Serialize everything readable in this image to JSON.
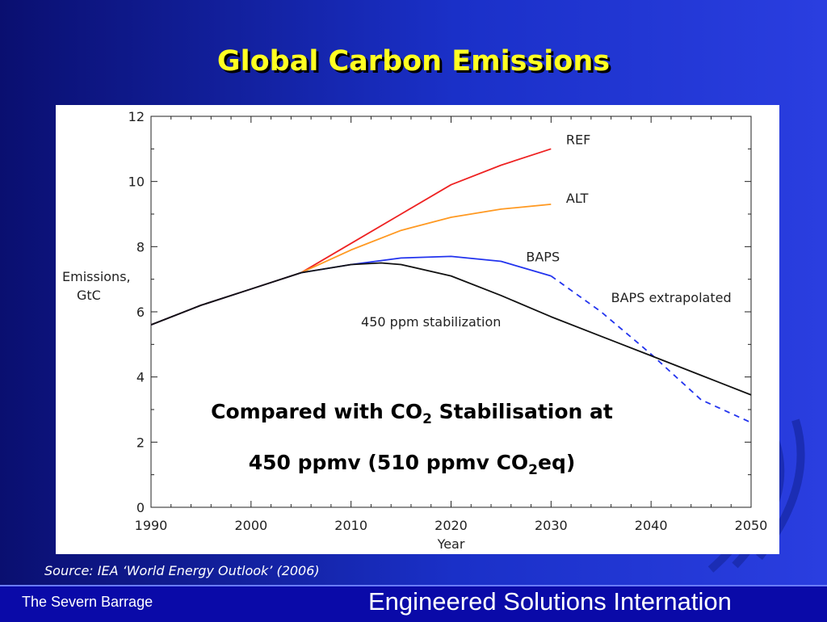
{
  "slide": {
    "title": "Global Carbon Emissions",
    "source": "Source: IEA ‘World Energy Outlook’ (2006)",
    "footer_left": "The Severn Barrage",
    "footer_right": "Engineered Solutions Internation",
    "note_line1_a": "Compared with CO",
    "note_line1_sub": "2",
    "note_line1_b": " Stabilisation at",
    "note_line2_a": "450 ppmv (510 ppmv CO",
    "note_line2_sub": "2",
    "note_line2_b": "eq)"
  },
  "chart_data": {
    "type": "line",
    "title": "",
    "xlabel": "Year",
    "ylabel": "Emissions, GtC",
    "xlim": [
      1990,
      2050
    ],
    "ylim": [
      0,
      12
    ],
    "xticks": [
      1990,
      2000,
      2010,
      2020,
      2030,
      2040,
      2050
    ],
    "yticks": [
      0,
      2,
      4,
      6,
      8,
      10,
      12
    ],
    "grid": false,
    "series": [
      {
        "name": "REF",
        "color": "#ee2222",
        "dash": false,
        "x": [
          1990,
          1995,
          2000,
          2005,
          2010,
          2015,
          2020,
          2025,
          2030
        ],
        "y": [
          5.6,
          6.2,
          6.7,
          7.2,
          8.1,
          9.0,
          9.9,
          10.5,
          11.0
        ]
      },
      {
        "name": "ALT",
        "color": "#ff9922",
        "dash": false,
        "x": [
          1990,
          1995,
          2000,
          2005,
          2010,
          2015,
          2020,
          2025,
          2030
        ],
        "y": [
          5.6,
          6.2,
          6.7,
          7.2,
          7.9,
          8.5,
          8.9,
          9.15,
          9.3
        ]
      },
      {
        "name": "BAPS",
        "color": "#2233ee",
        "dash": false,
        "x": [
          1990,
          1995,
          2000,
          2005,
          2010,
          2015,
          2020,
          2025,
          2030
        ],
        "y": [
          5.6,
          6.2,
          6.7,
          7.2,
          7.45,
          7.65,
          7.7,
          7.55,
          7.1
        ]
      },
      {
        "name": "BAPS  extrapolated",
        "color": "#2233ee",
        "dash": true,
        "x": [
          2030,
          2035,
          2040,
          2045,
          2050
        ],
        "y": [
          7.1,
          6.0,
          4.7,
          3.3,
          2.6
        ]
      },
      {
        "name": "450  ppm  stabilization",
        "color": "#111111",
        "dash": false,
        "x": [
          1990,
          1995,
          2000,
          2005,
          2010,
          2013,
          2015,
          2020,
          2025,
          2030,
          2035,
          2040,
          2045,
          2050
        ],
        "y": [
          5.6,
          6.2,
          6.7,
          7.2,
          7.45,
          7.5,
          7.45,
          7.1,
          6.5,
          5.85,
          5.25,
          4.65,
          4.05,
          3.45
        ]
      }
    ]
  }
}
